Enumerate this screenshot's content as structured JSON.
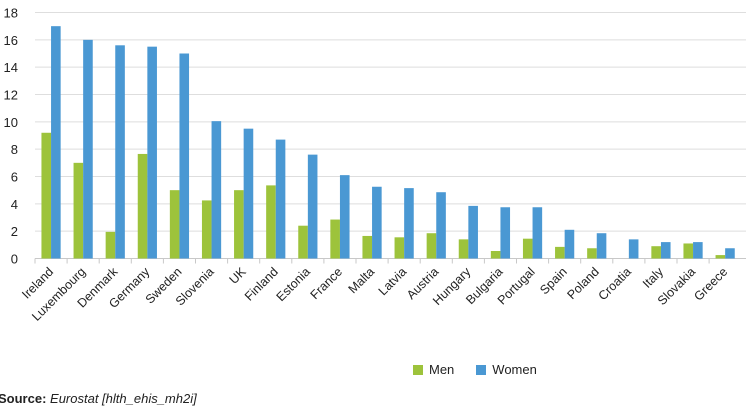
{
  "chart_data": {
    "type": "bar",
    "title": "",
    "xlabel": "",
    "ylabel": "",
    "ylim": [
      0,
      18
    ],
    "yticks": [
      0,
      2,
      4,
      6,
      8,
      10,
      12,
      14,
      16,
      18
    ],
    "grid": true,
    "legend_position": "bottom",
    "categories": [
      "Ireland",
      "Luxembourg",
      "Denmark",
      "Germany",
      "Sweden",
      "Slovenia",
      "UK",
      "Finland",
      "Estonia",
      "France",
      "Malta",
      "Latvia",
      "Austria",
      "Hungary",
      "Bulgaria",
      "Portugal",
      "Spain",
      "Poland",
      "Croatia",
      "Italy",
      "Slovakia",
      "Greece"
    ],
    "series": [
      {
        "name": "Men",
        "color": "#9dc33b",
        "values": [
          9.2,
          7.0,
          1.95,
          7.65,
          5.0,
          4.25,
          5.0,
          5.35,
          2.4,
          2.85,
          1.65,
          1.55,
          1.85,
          1.4,
          0.55,
          1.45,
          0.85,
          0.75,
          null,
          0.9,
          1.1,
          0.25
        ]
      },
      {
        "name": "Women",
        "color": "#4a98d3",
        "values": [
          17.0,
          16.0,
          15.6,
          15.5,
          15.0,
          10.05,
          9.5,
          8.7,
          7.6,
          6.1,
          5.25,
          5.15,
          4.85,
          3.85,
          3.75,
          3.75,
          2.1,
          1.85,
          1.4,
          1.2,
          1.2,
          0.75
        ]
      }
    ]
  },
  "source": {
    "label": "Source:",
    "text": "Eurostat [hlth_ehis_mh2i]"
  }
}
